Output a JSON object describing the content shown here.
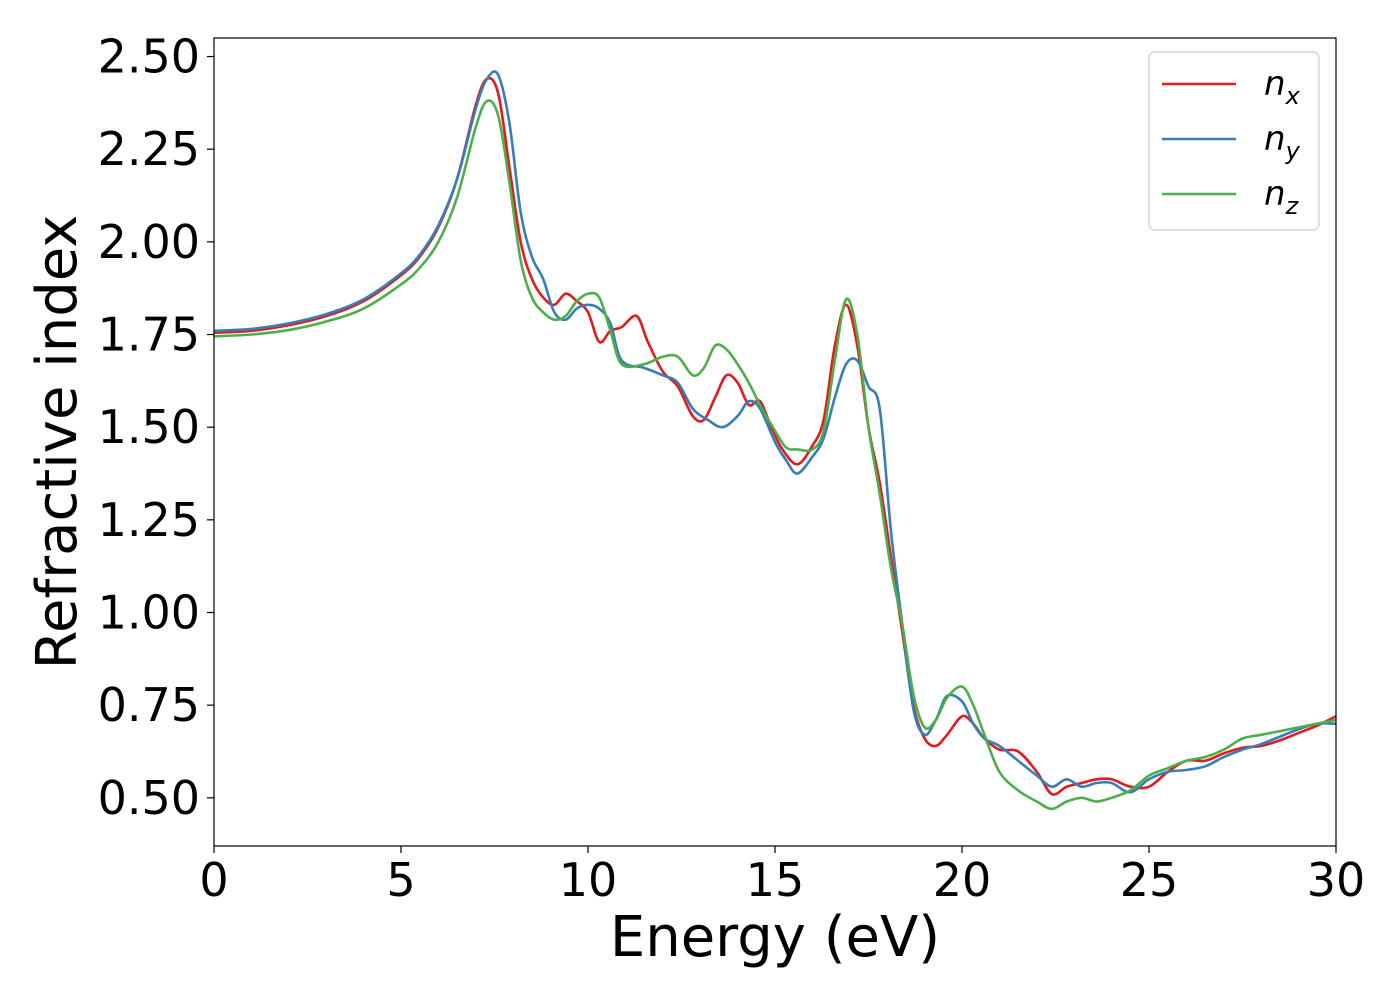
{
  "chart_data": {
    "type": "line",
    "xlabel": "Energy (eV)",
    "ylabel": "Refractive index",
    "xlim": [
      0,
      30
    ],
    "ylim": [
      0.37,
      2.55
    ],
    "xticks": [
      0,
      5,
      10,
      15,
      20,
      25,
      30
    ],
    "xtick_labels": [
      "0",
      "5",
      "10",
      "15",
      "20",
      "25",
      "30"
    ],
    "yticks": [
      0.5,
      0.75,
      1.0,
      1.25,
      1.5,
      1.75,
      2.0,
      2.25,
      2.5
    ],
    "ytick_labels": [
      "0.50",
      "0.75",
      "1.00",
      "1.25",
      "1.50",
      "1.75",
      "2.00",
      "2.25",
      "2.50"
    ],
    "grid": false,
    "legend_position": "top-right",
    "series": [
      {
        "name": "n_x",
        "legend_base": "n",
        "legend_sub": "x",
        "color": "#e41a1c",
        "points": [
          [
            0,
            1.755
          ],
          [
            1,
            1.76
          ],
          [
            2,
            1.775
          ],
          [
            3,
            1.8
          ],
          [
            4,
            1.84
          ],
          [
            5,
            1.91
          ],
          [
            5.5,
            1.96
          ],
          [
            6,
            2.04
          ],
          [
            6.5,
            2.17
          ],
          [
            7,
            2.37
          ],
          [
            7.3,
            2.44
          ],
          [
            7.6,
            2.4
          ],
          [
            7.9,
            2.2
          ],
          [
            8.2,
            2.0
          ],
          [
            8.5,
            1.9
          ],
          [
            8.8,
            1.85
          ],
          [
            9.1,
            1.83
          ],
          [
            9.4,
            1.86
          ],
          [
            9.7,
            1.84
          ],
          [
            10.0,
            1.81
          ],
          [
            10.3,
            1.73
          ],
          [
            10.6,
            1.76
          ],
          [
            10.9,
            1.77
          ],
          [
            11.3,
            1.8
          ],
          [
            11.6,
            1.73
          ],
          [
            12.0,
            1.65
          ],
          [
            12.4,
            1.61
          ],
          [
            12.8,
            1.53
          ],
          [
            13.1,
            1.52
          ],
          [
            13.4,
            1.58
          ],
          [
            13.7,
            1.64
          ],
          [
            14.0,
            1.62
          ],
          [
            14.3,
            1.56
          ],
          [
            14.6,
            1.57
          ],
          [
            14.9,
            1.5
          ],
          [
            15.2,
            1.44
          ],
          [
            15.6,
            1.4
          ],
          [
            16.0,
            1.45
          ],
          [
            16.3,
            1.52
          ],
          [
            16.6,
            1.72
          ],
          [
            16.9,
            1.83
          ],
          [
            17.2,
            1.72
          ],
          [
            17.5,
            1.5
          ],
          [
            17.8,
            1.35
          ],
          [
            18.1,
            1.15
          ],
          [
            18.4,
            0.95
          ],
          [
            18.7,
            0.75
          ],
          [
            19.0,
            0.66
          ],
          [
            19.3,
            0.64
          ],
          [
            19.6,
            0.67
          ],
          [
            20.0,
            0.72
          ],
          [
            20.3,
            0.7
          ],
          [
            20.6,
            0.66
          ],
          [
            21.0,
            0.63
          ],
          [
            21.5,
            0.625
          ],
          [
            22.0,
            0.57
          ],
          [
            22.4,
            0.51
          ],
          [
            22.8,
            0.53
          ],
          [
            23.2,
            0.54
          ],
          [
            23.6,
            0.55
          ],
          [
            24.0,
            0.55
          ],
          [
            24.5,
            0.53
          ],
          [
            25.0,
            0.53
          ],
          [
            25.5,
            0.57
          ],
          [
            26.0,
            0.6
          ],
          [
            26.5,
            0.6
          ],
          [
            27.0,
            0.62
          ],
          [
            27.5,
            0.635
          ],
          [
            28.0,
            0.64
          ],
          [
            28.5,
            0.655
          ],
          [
            29.0,
            0.675
          ],
          [
            29.5,
            0.695
          ],
          [
            30.0,
            0.72
          ]
        ]
      },
      {
        "name": "n_y",
        "legend_base": "n",
        "legend_sub": "y",
        "color": "#377eb8",
        "points": [
          [
            0,
            1.76
          ],
          [
            1,
            1.765
          ],
          [
            2,
            1.78
          ],
          [
            3,
            1.805
          ],
          [
            4,
            1.845
          ],
          [
            5,
            1.915
          ],
          [
            5.5,
            1.965
          ],
          [
            6,
            2.045
          ],
          [
            6.5,
            2.17
          ],
          [
            7,
            2.36
          ],
          [
            7.3,
            2.44
          ],
          [
            7.6,
            2.45
          ],
          [
            7.9,
            2.32
          ],
          [
            8.2,
            2.08
          ],
          [
            8.5,
            1.96
          ],
          [
            8.8,
            1.9
          ],
          [
            9.1,
            1.81
          ],
          [
            9.4,
            1.79
          ],
          [
            9.7,
            1.82
          ],
          [
            10.0,
            1.83
          ],
          [
            10.3,
            1.82
          ],
          [
            10.6,
            1.78
          ],
          [
            10.9,
            1.68
          ],
          [
            11.5,
            1.66
          ],
          [
            12.0,
            1.64
          ],
          [
            12.4,
            1.62
          ],
          [
            12.8,
            1.55
          ],
          [
            13.2,
            1.52
          ],
          [
            13.6,
            1.5
          ],
          [
            14.0,
            1.53
          ],
          [
            14.3,
            1.57
          ],
          [
            14.6,
            1.55
          ],
          [
            15.0,
            1.46
          ],
          [
            15.3,
            1.41
          ],
          [
            15.6,
            1.375
          ],
          [
            16.0,
            1.42
          ],
          [
            16.3,
            1.47
          ],
          [
            16.6,
            1.58
          ],
          [
            16.9,
            1.67
          ],
          [
            17.2,
            1.68
          ],
          [
            17.5,
            1.61
          ],
          [
            17.8,
            1.55
          ],
          [
            18.1,
            1.22
          ],
          [
            18.4,
            0.97
          ],
          [
            18.7,
            0.74
          ],
          [
            19.0,
            0.67
          ],
          [
            19.3,
            0.71
          ],
          [
            19.6,
            0.775
          ],
          [
            20.0,
            0.76
          ],
          [
            20.3,
            0.7
          ],
          [
            20.6,
            0.66
          ],
          [
            21.0,
            0.64
          ],
          [
            21.5,
            0.6
          ],
          [
            22.0,
            0.56
          ],
          [
            22.4,
            0.53
          ],
          [
            22.8,
            0.55
          ],
          [
            23.2,
            0.53
          ],
          [
            23.6,
            0.54
          ],
          [
            24.0,
            0.54
          ],
          [
            24.5,
            0.515
          ],
          [
            25.0,
            0.55
          ],
          [
            25.5,
            0.57
          ],
          [
            26.0,
            0.575
          ],
          [
            26.5,
            0.585
          ],
          [
            27.0,
            0.61
          ],
          [
            27.5,
            0.63
          ],
          [
            28.0,
            0.645
          ],
          [
            28.5,
            0.665
          ],
          [
            29.0,
            0.685
          ],
          [
            29.5,
            0.7
          ],
          [
            30.0,
            0.7
          ]
        ]
      },
      {
        "name": "n_z",
        "legend_base": "n",
        "legend_sub": "z",
        "color": "#4daf4a",
        "points": [
          [
            0,
            1.745
          ],
          [
            1,
            1.75
          ],
          [
            2,
            1.762
          ],
          [
            3,
            1.785
          ],
          [
            4,
            1.82
          ],
          [
            5,
            1.885
          ],
          [
            5.5,
            1.93
          ],
          [
            6,
            2.0
          ],
          [
            6.5,
            2.12
          ],
          [
            7,
            2.31
          ],
          [
            7.3,
            2.38
          ],
          [
            7.6,
            2.34
          ],
          [
            7.9,
            2.16
          ],
          [
            8.2,
            1.95
          ],
          [
            8.5,
            1.85
          ],
          [
            8.8,
            1.81
          ],
          [
            9.1,
            1.79
          ],
          [
            9.4,
            1.8
          ],
          [
            9.7,
            1.84
          ],
          [
            10.0,
            1.86
          ],
          [
            10.3,
            1.85
          ],
          [
            10.6,
            1.76
          ],
          [
            10.9,
            1.67
          ],
          [
            11.5,
            1.67
          ],
          [
            12.0,
            1.69
          ],
          [
            12.4,
            1.69
          ],
          [
            12.8,
            1.64
          ],
          [
            13.1,
            1.66
          ],
          [
            13.4,
            1.72
          ],
          [
            13.7,
            1.71
          ],
          [
            14.0,
            1.67
          ],
          [
            14.3,
            1.62
          ],
          [
            14.6,
            1.56
          ],
          [
            15.0,
            1.49
          ],
          [
            15.3,
            1.445
          ],
          [
            15.6,
            1.44
          ],
          [
            16.0,
            1.44
          ],
          [
            16.3,
            1.49
          ],
          [
            16.6,
            1.68
          ],
          [
            16.9,
            1.845
          ],
          [
            17.2,
            1.75
          ],
          [
            17.5,
            1.5
          ],
          [
            17.8,
            1.32
          ],
          [
            18.1,
            1.12
          ],
          [
            18.4,
            0.97
          ],
          [
            18.7,
            0.78
          ],
          [
            19.0,
            0.69
          ],
          [
            19.3,
            0.71
          ],
          [
            19.6,
            0.77
          ],
          [
            20.0,
            0.8
          ],
          [
            20.3,
            0.75
          ],
          [
            20.6,
            0.67
          ],
          [
            21.0,
            0.57
          ],
          [
            21.5,
            0.52
          ],
          [
            22.0,
            0.49
          ],
          [
            22.4,
            0.47
          ],
          [
            22.8,
            0.49
          ],
          [
            23.2,
            0.5
          ],
          [
            23.6,
            0.49
          ],
          [
            24.0,
            0.5
          ],
          [
            24.5,
            0.52
          ],
          [
            25.0,
            0.56
          ],
          [
            25.5,
            0.58
          ],
          [
            26.0,
            0.6
          ],
          [
            26.5,
            0.61
          ],
          [
            27.0,
            0.63
          ],
          [
            27.5,
            0.66
          ],
          [
            28.0,
            0.67
          ],
          [
            28.5,
            0.68
          ],
          [
            29.0,
            0.69
          ],
          [
            29.5,
            0.7
          ],
          [
            30.0,
            0.71
          ]
        ]
      }
    ]
  }
}
